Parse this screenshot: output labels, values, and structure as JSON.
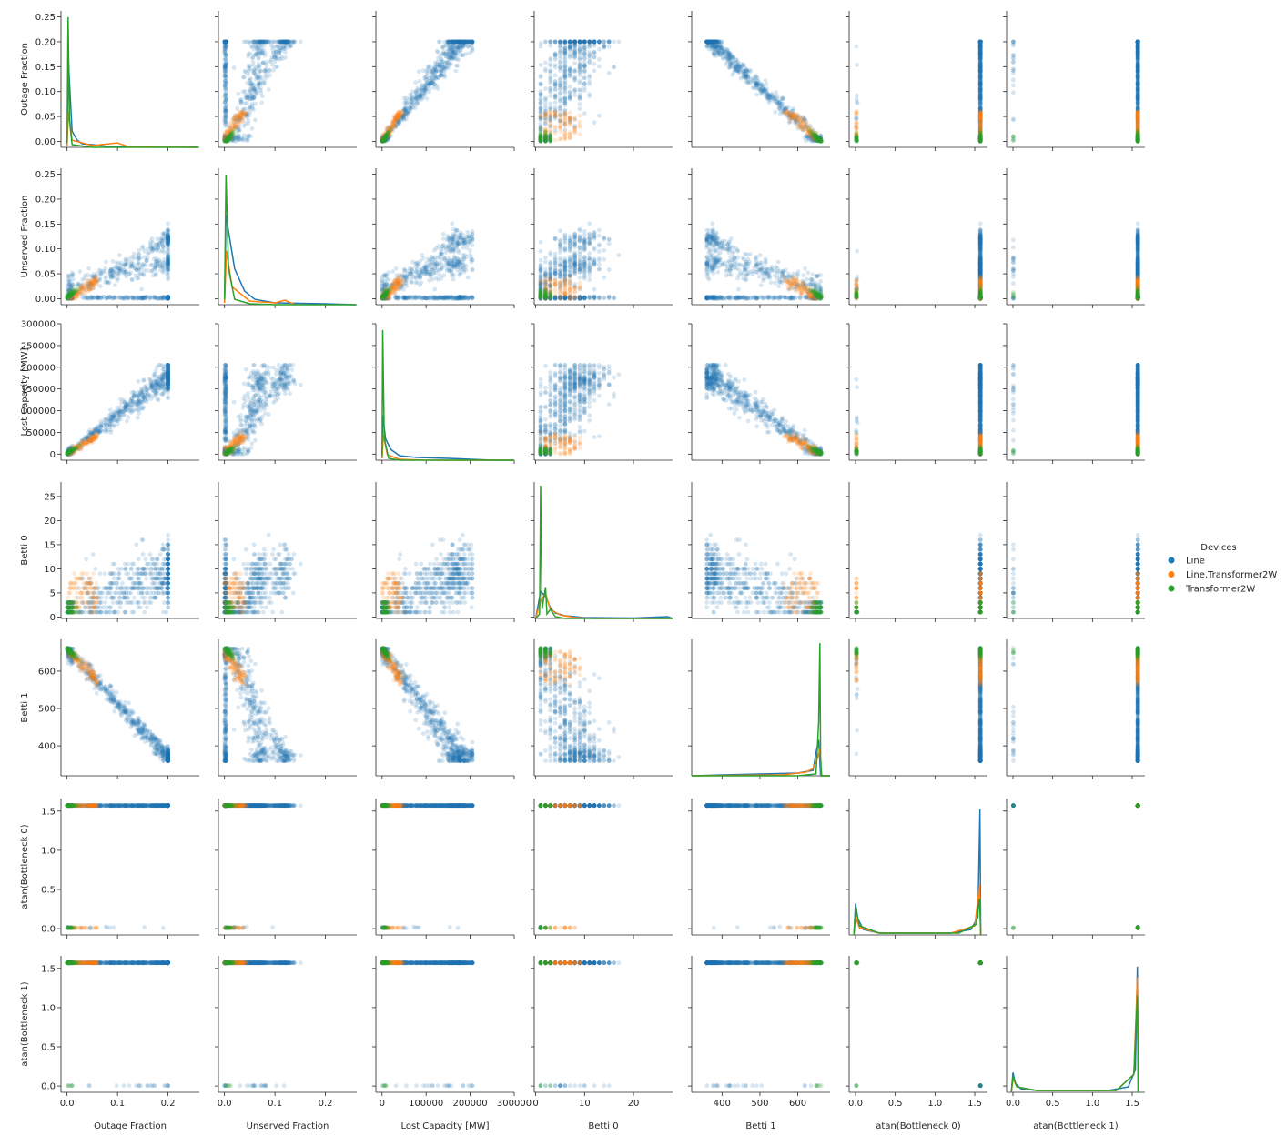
{
  "chart_data": {
    "type": "scatter",
    "subtype": "pairplot",
    "hue_label": "Devices",
    "colors": {
      "Line": "#1f77b4",
      "Line,Transformer2W": "#ff7f0e",
      "Transformer2W": "#2ca02c"
    },
    "series": [
      {
        "name": "Line",
        "color": "#1f77b4"
      },
      {
        "name": "Line,Transformer2W",
        "color": "#ff7f0e"
      },
      {
        "name": "Transformer2W",
        "color": "#2ca02c"
      }
    ],
    "variables": [
      {
        "key": "of",
        "label": "Outage Fraction",
        "range": [
          -0.012,
          0.262
        ],
        "ticks": [
          {
            "v": 0,
            "t": "0.0"
          },
          {
            "v": 0.1,
            "t": "0.1"
          },
          {
            "v": 0.2,
            "t": "0.2"
          }
        ],
        "yticks": [
          {
            "v": 0,
            "t": "0.00"
          },
          {
            "v": 0.05,
            "t": "0.05"
          },
          {
            "v": 0.1,
            "t": "0.10"
          },
          {
            "v": 0.15,
            "t": "0.15"
          },
          {
            "v": 0.2,
            "t": "0.20"
          },
          {
            "v": 0.25,
            "t": "0.25"
          }
        ]
      },
      {
        "key": "uf",
        "label": "Unserved Fraction",
        "range": [
          -0.012,
          0.262
        ],
        "ticks": [
          {
            "v": 0,
            "t": "0.0"
          },
          {
            "v": 0.1,
            "t": "0.1"
          },
          {
            "v": 0.2,
            "t": "0.2"
          }
        ],
        "yticks": [
          {
            "v": 0,
            "t": "0.00"
          },
          {
            "v": 0.05,
            "t": "0.05"
          },
          {
            "v": 0.1,
            "t": "0.10"
          },
          {
            "v": 0.15,
            "t": "0.15"
          },
          {
            "v": 0.2,
            "t": "0.20"
          },
          {
            "v": 0.25,
            "t": "0.25"
          }
        ]
      },
      {
        "key": "lc",
        "label": "Lost Capacity [MW]",
        "range": [
          -14000,
          300000
        ],
        "ticks": [
          {
            "v": 0,
            "t": "0"
          },
          {
            "v": 100000,
            "t": "100000"
          },
          {
            "v": 200000,
            "t": "200000"
          },
          {
            "v": 300000,
            "t": "300000"
          }
        ],
        "yticks": [
          {
            "v": 0,
            "t": "0"
          },
          {
            "v": 50000,
            "t": "50000"
          },
          {
            "v": 100000,
            "t": "100000"
          },
          {
            "v": 150000,
            "t": "150000"
          },
          {
            "v": 200000,
            "t": "200000"
          },
          {
            "v": 250000,
            "t": "250000"
          },
          {
            "v": 300000,
            "t": "300000"
          }
        ]
      },
      {
        "key": "b0",
        "label": "Betti 0",
        "range": [
          -0.3,
          28
        ],
        "ticks": [
          {
            "v": 0,
            "t": "0"
          },
          {
            "v": 10,
            "t": "10"
          },
          {
            "v": 20,
            "t": "20"
          }
        ],
        "yticks": [
          {
            "v": 0,
            "t": "0"
          },
          {
            "v": 5,
            "t": "5"
          },
          {
            "v": 10,
            "t": "10"
          },
          {
            "v": 15,
            "t": "15"
          },
          {
            "v": 20,
            "t": "20"
          },
          {
            "v": 25,
            "t": "25"
          }
        ]
      },
      {
        "key": "b1",
        "label": "Betti 1",
        "range": [
          320,
          685
        ],
        "ticks": [
          {
            "v": 400,
            "t": "400"
          },
          {
            "v": 500,
            "t": "500"
          },
          {
            "v": 600,
            "t": "600"
          }
        ],
        "yticks": [
          {
            "v": 400,
            "t": "400"
          },
          {
            "v": 500,
            "t": "500"
          },
          {
            "v": 600,
            "t": "600"
          }
        ]
      },
      {
        "key": "ab0",
        "label": "atan(Bottleneck 0)",
        "range": [
          -0.08,
          1.66
        ],
        "ticks": [
          {
            "v": 0,
            "t": "0.0"
          },
          {
            "v": 0.5,
            "t": "0.5"
          },
          {
            "v": 1,
            "t": "1.0"
          },
          {
            "v": 1.5,
            "t": "1.5"
          }
        ],
        "yticks": [
          {
            "v": 0,
            "t": "0.0"
          },
          {
            "v": 0.5,
            "t": "0.5"
          },
          {
            "v": 1,
            "t": "1.0"
          },
          {
            "v": 1.5,
            "t": "1.5"
          }
        ]
      },
      {
        "key": "ab1",
        "label": "atan(Bottleneck 1)",
        "range": [
          -0.08,
          1.66
        ],
        "ticks": [
          {
            "v": 0,
            "t": "0.0"
          },
          {
            "v": 0.5,
            "t": "0.5"
          },
          {
            "v": 1,
            "t": "1.0"
          },
          {
            "v": 1.5,
            "t": "1.5"
          }
        ],
        "yticks": [
          {
            "v": 0,
            "t": "0.0"
          },
          {
            "v": 0.5,
            "t": "0.5"
          },
          {
            "v": 1,
            "t": "1.0"
          },
          {
            "v": 1.5,
            "t": "1.5"
          }
        ]
      }
    ],
    "legend_position": "right-center",
    "grid": false
  }
}
